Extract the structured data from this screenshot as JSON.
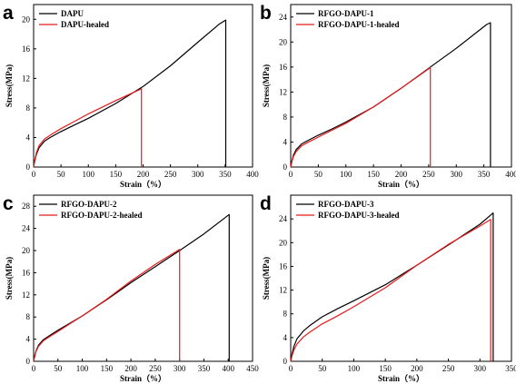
{
  "figure": {
    "background": "#ffffff"
  },
  "chart_data": [
    {
      "type": "line",
      "panel_label": "a",
      "xlabel": "Strain（%）",
      "ylabel": "Stress(MPa)",
      "xlim": [
        0,
        400
      ],
      "ylim": [
        0,
        22
      ],
      "xticks": [
        0,
        50,
        100,
        150,
        200,
        250,
        300,
        350,
        400
      ],
      "yticks": [
        0,
        4,
        8,
        12,
        16,
        20
      ],
      "legend": "top-left",
      "series": [
        {
          "name": "DAPU",
          "color": "#000000",
          "x": [
            0,
            2,
            5,
            10,
            20,
            30,
            50,
            75,
            100,
            150,
            200,
            250,
            300,
            340,
            351,
            351
          ],
          "y": [
            0,
            0.8,
            1.7,
            2.6,
            3.5,
            4.0,
            4.8,
            5.7,
            6.6,
            8.6,
            10.9,
            13.7,
            16.9,
            19.4,
            19.9,
            0
          ]
        },
        {
          "name": "DAPU-healed",
          "color": "#e8191c",
          "x": [
            0,
            2,
            5,
            10,
            20,
            30,
            50,
            75,
            100,
            150,
            197,
            197
          ],
          "y": [
            0,
            0.9,
            1.9,
            2.9,
            3.8,
            4.3,
            5.2,
            6.2,
            7.2,
            9.0,
            10.6,
            0
          ]
        }
      ]
    },
    {
      "type": "line",
      "panel_label": "b",
      "xlabel": "Strain（%）",
      "ylabel": "Stress(MPa)",
      "xlim": [
        0,
        400
      ],
      "ylim": [
        0,
        26
      ],
      "xticks": [
        0,
        50,
        100,
        150,
        200,
        250,
        300,
        350,
        400
      ],
      "yticks": [
        0,
        4,
        8,
        12,
        16,
        20,
        24
      ],
      "legend": "top-left",
      "series": [
        {
          "name": "RFGO-DAPU-1",
          "color": "#000000",
          "x": [
            0,
            2,
            5,
            10,
            20,
            30,
            50,
            75,
            100,
            150,
            200,
            250,
            300,
            355,
            362,
            362
          ],
          "y": [
            0,
            0.9,
            1.9,
            2.8,
            3.7,
            4.2,
            5.1,
            6.1,
            7.2,
            9.6,
            12.6,
            15.8,
            19.0,
            22.8,
            23.1,
            0
          ]
        },
        {
          "name": "RFGO-DAPU-1-healed",
          "color": "#e8191c",
          "x": [
            0,
            2,
            5,
            10,
            20,
            30,
            50,
            75,
            100,
            150,
            200,
            253,
            253
          ],
          "y": [
            0,
            0.8,
            1.7,
            2.5,
            3.4,
            3.9,
            4.8,
            5.9,
            7.0,
            9.6,
            12.6,
            15.9,
            0
          ]
        }
      ]
    },
    {
      "type": "line",
      "panel_label": "c",
      "xlabel": "Strain（%）",
      "ylabel": "Stress(MPa)",
      "xlim": [
        0,
        450
      ],
      "ylim": [
        0,
        30
      ],
      "xticks": [
        0,
        50,
        100,
        150,
        200,
        250,
        300,
        350,
        400,
        450
      ],
      "yticks": [
        0,
        4,
        8,
        12,
        16,
        20,
        24,
        28
      ],
      "legend": "top-left",
      "series": [
        {
          "name": "RFGO-DAPU-2",
          "color": "#000000",
          "x": [
            0,
            2,
            5,
            10,
            20,
            30,
            50,
            75,
            100,
            150,
            200,
            250,
            300,
            350,
            402,
            402
          ],
          "y": [
            0,
            0.9,
            1.9,
            2.9,
            3.9,
            4.5,
            5.6,
            6.9,
            8.2,
            11.1,
            14.2,
            17.1,
            20.0,
            23.0,
            26.5,
            0
          ]
        },
        {
          "name": "RFGO-DAPU-2-healed",
          "color": "#e8191c",
          "x": [
            0,
            2,
            5,
            10,
            20,
            30,
            50,
            75,
            100,
            150,
            200,
            250,
            300,
            300
          ],
          "y": [
            0,
            0.8,
            1.8,
            2.7,
            3.7,
            4.3,
            5.4,
            6.8,
            8.2,
            11.2,
            14.5,
            17.5,
            20.2,
            0
          ]
        }
      ]
    },
    {
      "type": "line",
      "panel_label": "d",
      "xlabel": "Strain（%）",
      "ylabel": "Stress(MPa)",
      "xlim": [
        0,
        350
      ],
      "ylim": [
        0,
        28
      ],
      "xticks": [
        0,
        50,
        100,
        150,
        200,
        250,
        300,
        350
      ],
      "yticks": [
        0,
        4,
        8,
        12,
        16,
        20,
        24
      ],
      "legend": "top-left",
      "series": [
        {
          "name": "RFGO-DAPU-3",
          "color": "#000000",
          "x": [
            0,
            2,
            5,
            10,
            20,
            30,
            50,
            75,
            100,
            150,
            200,
            250,
            300,
            321,
            321
          ],
          "y": [
            0,
            1.2,
            2.5,
            3.8,
            5.1,
            6.0,
            7.5,
            8.9,
            10.2,
            12.9,
            16.2,
            19.6,
            23.1,
            25.0,
            0
          ]
        },
        {
          "name": "RFGO-DAPU-3-healed",
          "color": "#e8191c",
          "x": [
            0,
            2,
            5,
            10,
            20,
            30,
            50,
            75,
            100,
            150,
            200,
            250,
            300,
            317,
            317
          ],
          "y": [
            0,
            0.9,
            1.9,
            2.9,
            4.1,
            4.9,
            6.3,
            7.7,
            9.2,
            12.4,
            16.2,
            19.7,
            22.8,
            23.9,
            0
          ]
        }
      ]
    }
  ]
}
